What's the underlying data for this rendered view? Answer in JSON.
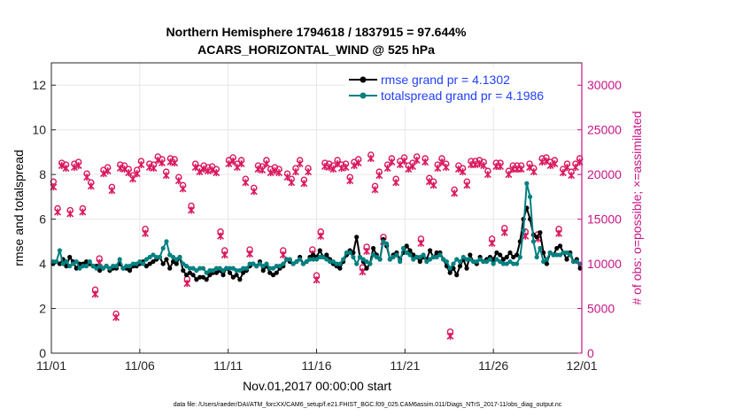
{
  "chart_data": {
    "type": "line",
    "title": "Northern Hemisphere 1794618 / 1837915 = 97.644%",
    "subtitle": "ACARS_HORIZONTAL_WIND @ 525 hPa",
    "xlabel": "Nov.01,2017 00:00:00 start",
    "ylabel_left": "rmse and totalspread",
    "ylabel_right": "# of obs: o=possible; ×=assimilated",
    "xlim": [
      0,
      30
    ],
    "ylim_left": [
      0,
      13
    ],
    "ylim_right": [
      0,
      32500
    ],
    "x_tick_labels": [
      "11/01",
      "11/06",
      "11/11",
      "11/16",
      "11/21",
      "11/26",
      "12/01"
    ],
    "left_tick_labels": [
      "0",
      "2",
      "4",
      "6",
      "8",
      "10",
      "12"
    ],
    "right_tick_labels": [
      "0",
      "5000",
      "10000",
      "15000",
      "20000",
      "25000",
      "30000"
    ],
    "footer": "data file: /Users/raeder/DAI/ATM_forcXX/CAM6_setup/f.e21.FHIST_BGC.f09_025.CAM6assim.011/Diags_NTrS_2017-11/obs_diag_output.nc",
    "colors": {
      "rmse": "#000000",
      "spread": "#008080",
      "obs": "#d9185f",
      "right_axis": "#c71585",
      "legend_text": "#1f3fff"
    },
    "series": [
      {
        "name": "rmse grand pr = 4.1302",
        "key": "rmse",
        "values": [
          4.0,
          4.1,
          4.0,
          4.2,
          3.9,
          4.3,
          4.1,
          3.8,
          4.0,
          4.0,
          4.1,
          4.0,
          3.9,
          3.9,
          3.7,
          3.8,
          3.9,
          3.7,
          3.8,
          3.8,
          4.0,
          3.8,
          3.8,
          3.7,
          3.9,
          3.9,
          4.0,
          4.1,
          3.9,
          4.0,
          4.1,
          4.2,
          4.3,
          4.0,
          4.2,
          3.8,
          4.1,
          4.0,
          4.3,
          3.7,
          3.5,
          3.6,
          3.5,
          3.3,
          3.4,
          3.4,
          3.3,
          3.5,
          3.6,
          3.6,
          3.7,
          3.5,
          3.8,
          3.6,
          3.4,
          3.5,
          3.3,
          3.6,
          3.7,
          3.9,
          4.0,
          3.9,
          4.1,
          3.7,
          3.9,
          3.6,
          3.5,
          3.6,
          3.8,
          3.9,
          4.2,
          4.1,
          4.0,
          4.1,
          4.3,
          4.0,
          4.1,
          4.3,
          4.4,
          4.3,
          4.6,
          4.3,
          4.4,
          4.2,
          4.0,
          3.9,
          3.8,
          4.1,
          4.4,
          4.6,
          4.5,
          5.2,
          4.3,
          4.1,
          3.8,
          4.0,
          4.7,
          4.4,
          4.2,
          5.1,
          4.8,
          4.2,
          4.4,
          4.5,
          4.2,
          4.5,
          4.8,
          4.6,
          4.4,
          4.3,
          4.1,
          4.3,
          4.2,
          4.6,
          4.3,
          4.5,
          4.5,
          4.2,
          3.9,
          3.6,
          3.8,
          3.5,
          3.9,
          4.2,
          3.8,
          4.4,
          4.1,
          4.0,
          4.3,
          4.1,
          4.2,
          4.3,
          4.2,
          4.5,
          4.4,
          4.2,
          4.3,
          4.5,
          4.3,
          4.4,
          5.0,
          6.0,
          6.5,
          6.0,
          5.3,
          5.2,
          5.4,
          4.5,
          4.0,
          4.5,
          4.4,
          4.7,
          4.8,
          4.5,
          4.2,
          4.5,
          4.1,
          4.2,
          3.8
        ]
      },
      {
        "name": "totalspread grand pr = 4.1986",
        "key": "spread",
        "values": [
          4.1,
          4.1,
          4.6,
          4.0,
          4.1,
          3.9,
          4.0,
          4.1,
          3.8,
          3.9,
          3.9,
          4.1,
          3.9,
          3.8,
          3.9,
          3.8,
          3.9,
          3.8,
          3.9,
          3.9,
          4.2,
          3.8,
          3.9,
          3.9,
          4.0,
          4.0,
          4.1,
          4.0,
          4.2,
          4.3,
          4.4,
          4.3,
          4.3,
          4.7,
          5.0,
          4.4,
          4.3,
          4.2,
          4.3,
          4.0,
          3.9,
          3.8,
          3.8,
          3.7,
          3.8,
          3.8,
          3.6,
          3.7,
          3.7,
          3.8,
          3.8,
          3.7,
          3.8,
          3.8,
          3.8,
          3.7,
          3.7,
          3.8,
          3.8,
          4.0,
          4.0,
          3.9,
          4.0,
          3.9,
          4.0,
          3.8,
          3.8,
          3.9,
          3.9,
          4.0,
          4.2,
          4.2,
          4.0,
          4.1,
          4.2,
          4.0,
          4.1,
          4.2,
          4.2,
          4.2,
          4.3,
          4.3,
          4.2,
          4.1,
          4.1,
          4.0,
          4.0,
          4.2,
          4.5,
          4.5,
          4.3,
          4.0,
          4.3,
          4.2,
          4.1,
          4.0,
          4.4,
          4.3,
          4.2,
          5.0,
          4.9,
          4.2,
          4.3,
          4.4,
          4.1,
          4.7,
          4.5,
          4.4,
          4.2,
          4.3,
          4.3,
          4.4,
          4.1,
          4.2,
          4.3,
          4.3,
          4.4,
          4.2,
          4.1,
          3.8,
          4.0,
          4.2,
          4.1,
          4.3,
          4.2,
          4.2,
          4.1,
          4.1,
          4.2,
          4.1,
          4.1,
          4.2,
          4.0,
          4.2,
          4.1,
          4.0,
          4.0,
          4.1,
          4.0,
          4.0,
          4.3,
          5.5,
          7.6,
          7.0,
          5.0,
          4.3,
          4.7,
          4.1,
          4.2,
          4.5,
          4.4,
          4.4,
          4.4,
          4.5,
          4.5,
          4.4,
          4.1,
          4.1,
          4.0
        ]
      },
      {
        "name": "possible",
        "key": "possible",
        "axis": "right",
        "values": [
          19200,
          16200,
          21300,
          21100,
          16000,
          21200,
          21400,
          16200,
          20100,
          19100,
          7100,
          10600,
          20500,
          20800,
          18600,
          4400,
          21100,
          21000,
          20600,
          19900,
          20500,
          21500,
          13900,
          21200,
          21100,
          22000,
          21700,
          20300,
          21800,
          21700,
          19700,
          18800,
          8300,
          16500,
          21200,
          20700,
          21000,
          20800,
          20900,
          20600,
          13600,
          11500,
          21600,
          21900,
          21200,
          21600,
          19500,
          11600,
          18500,
          21000,
          20900,
          21600,
          20600,
          20800,
          20600,
          11500,
          20100,
          19500,
          20700,
          21600,
          19400,
          20700,
          11600,
          8700,
          13600,
          21300,
          21200,
          21000,
          21600,
          21100,
          21200,
          19700,
          21400,
          21700,
          9600,
          11900,
          22200,
          18700,
          20300,
          13000,
          21100,
          21800,
          19500,
          21500,
          21900,
          21000,
          21300,
          22000,
          12800,
          21800,
          19600,
          19200,
          21100,
          21800,
          21200,
          2400,
          18300,
          21000,
          20700,
          19200,
          21500,
          21500,
          21600,
          21400,
          20400,
          12800,
          21300,
          21300,
          14000,
          20400,
          21000,
          21000,
          21000,
          13600,
          21200,
          20700,
          13300,
          21800,
          21900,
          21400,
          21600,
          13900,
          20600,
          21200,
          20300,
          21200,
          21800
        ]
      },
      {
        "name": "assimilated",
        "key": "assimilated",
        "axis": "right",
        "values": [
          18600,
          15800,
          21000,
          20700,
          15600,
          20800,
          21000,
          15800,
          19700,
          18700,
          6600,
          10100,
          20100,
          20400,
          18200,
          4000,
          20700,
          20600,
          20200,
          19500,
          20100,
          21100,
          13400,
          20800,
          20700,
          21600,
          21300,
          19900,
          21400,
          21300,
          19300,
          18400,
          7800,
          16000,
          20800,
          20300,
          20600,
          20400,
          20500,
          20200,
          13100,
          11000,
          21200,
          21500,
          20800,
          21200,
          19100,
          11100,
          18100,
          20600,
          20500,
          21200,
          20200,
          20400,
          20200,
          11000,
          19700,
          19100,
          20300,
          21200,
          19000,
          20300,
          11100,
          8200,
          13100,
          20900,
          20800,
          20600,
          21200,
          20700,
          20800,
          19300,
          21000,
          21300,
          9100,
          11400,
          21800,
          18300,
          19900,
          12500,
          20700,
          21400,
          19100,
          21100,
          21500,
          20600,
          20900,
          21600,
          12300,
          21400,
          19200,
          18800,
          20700,
          21400,
          20800,
          1900,
          17900,
          20600,
          20300,
          18800,
          21100,
          21100,
          21200,
          21000,
          20000,
          12300,
          20900,
          20900,
          13500,
          20000,
          20600,
          20600,
          20600,
          13100,
          20800,
          20300,
          12800,
          21400,
          21500,
          21000,
          21200,
          13400,
          20200,
          20800,
          19900,
          20800,
          21400
        ]
      }
    ]
  },
  "legend": {
    "rmse_label": "rmse grand pr = 4.1302",
    "spread_label": "totalspread grand pr = 4.1986"
  }
}
